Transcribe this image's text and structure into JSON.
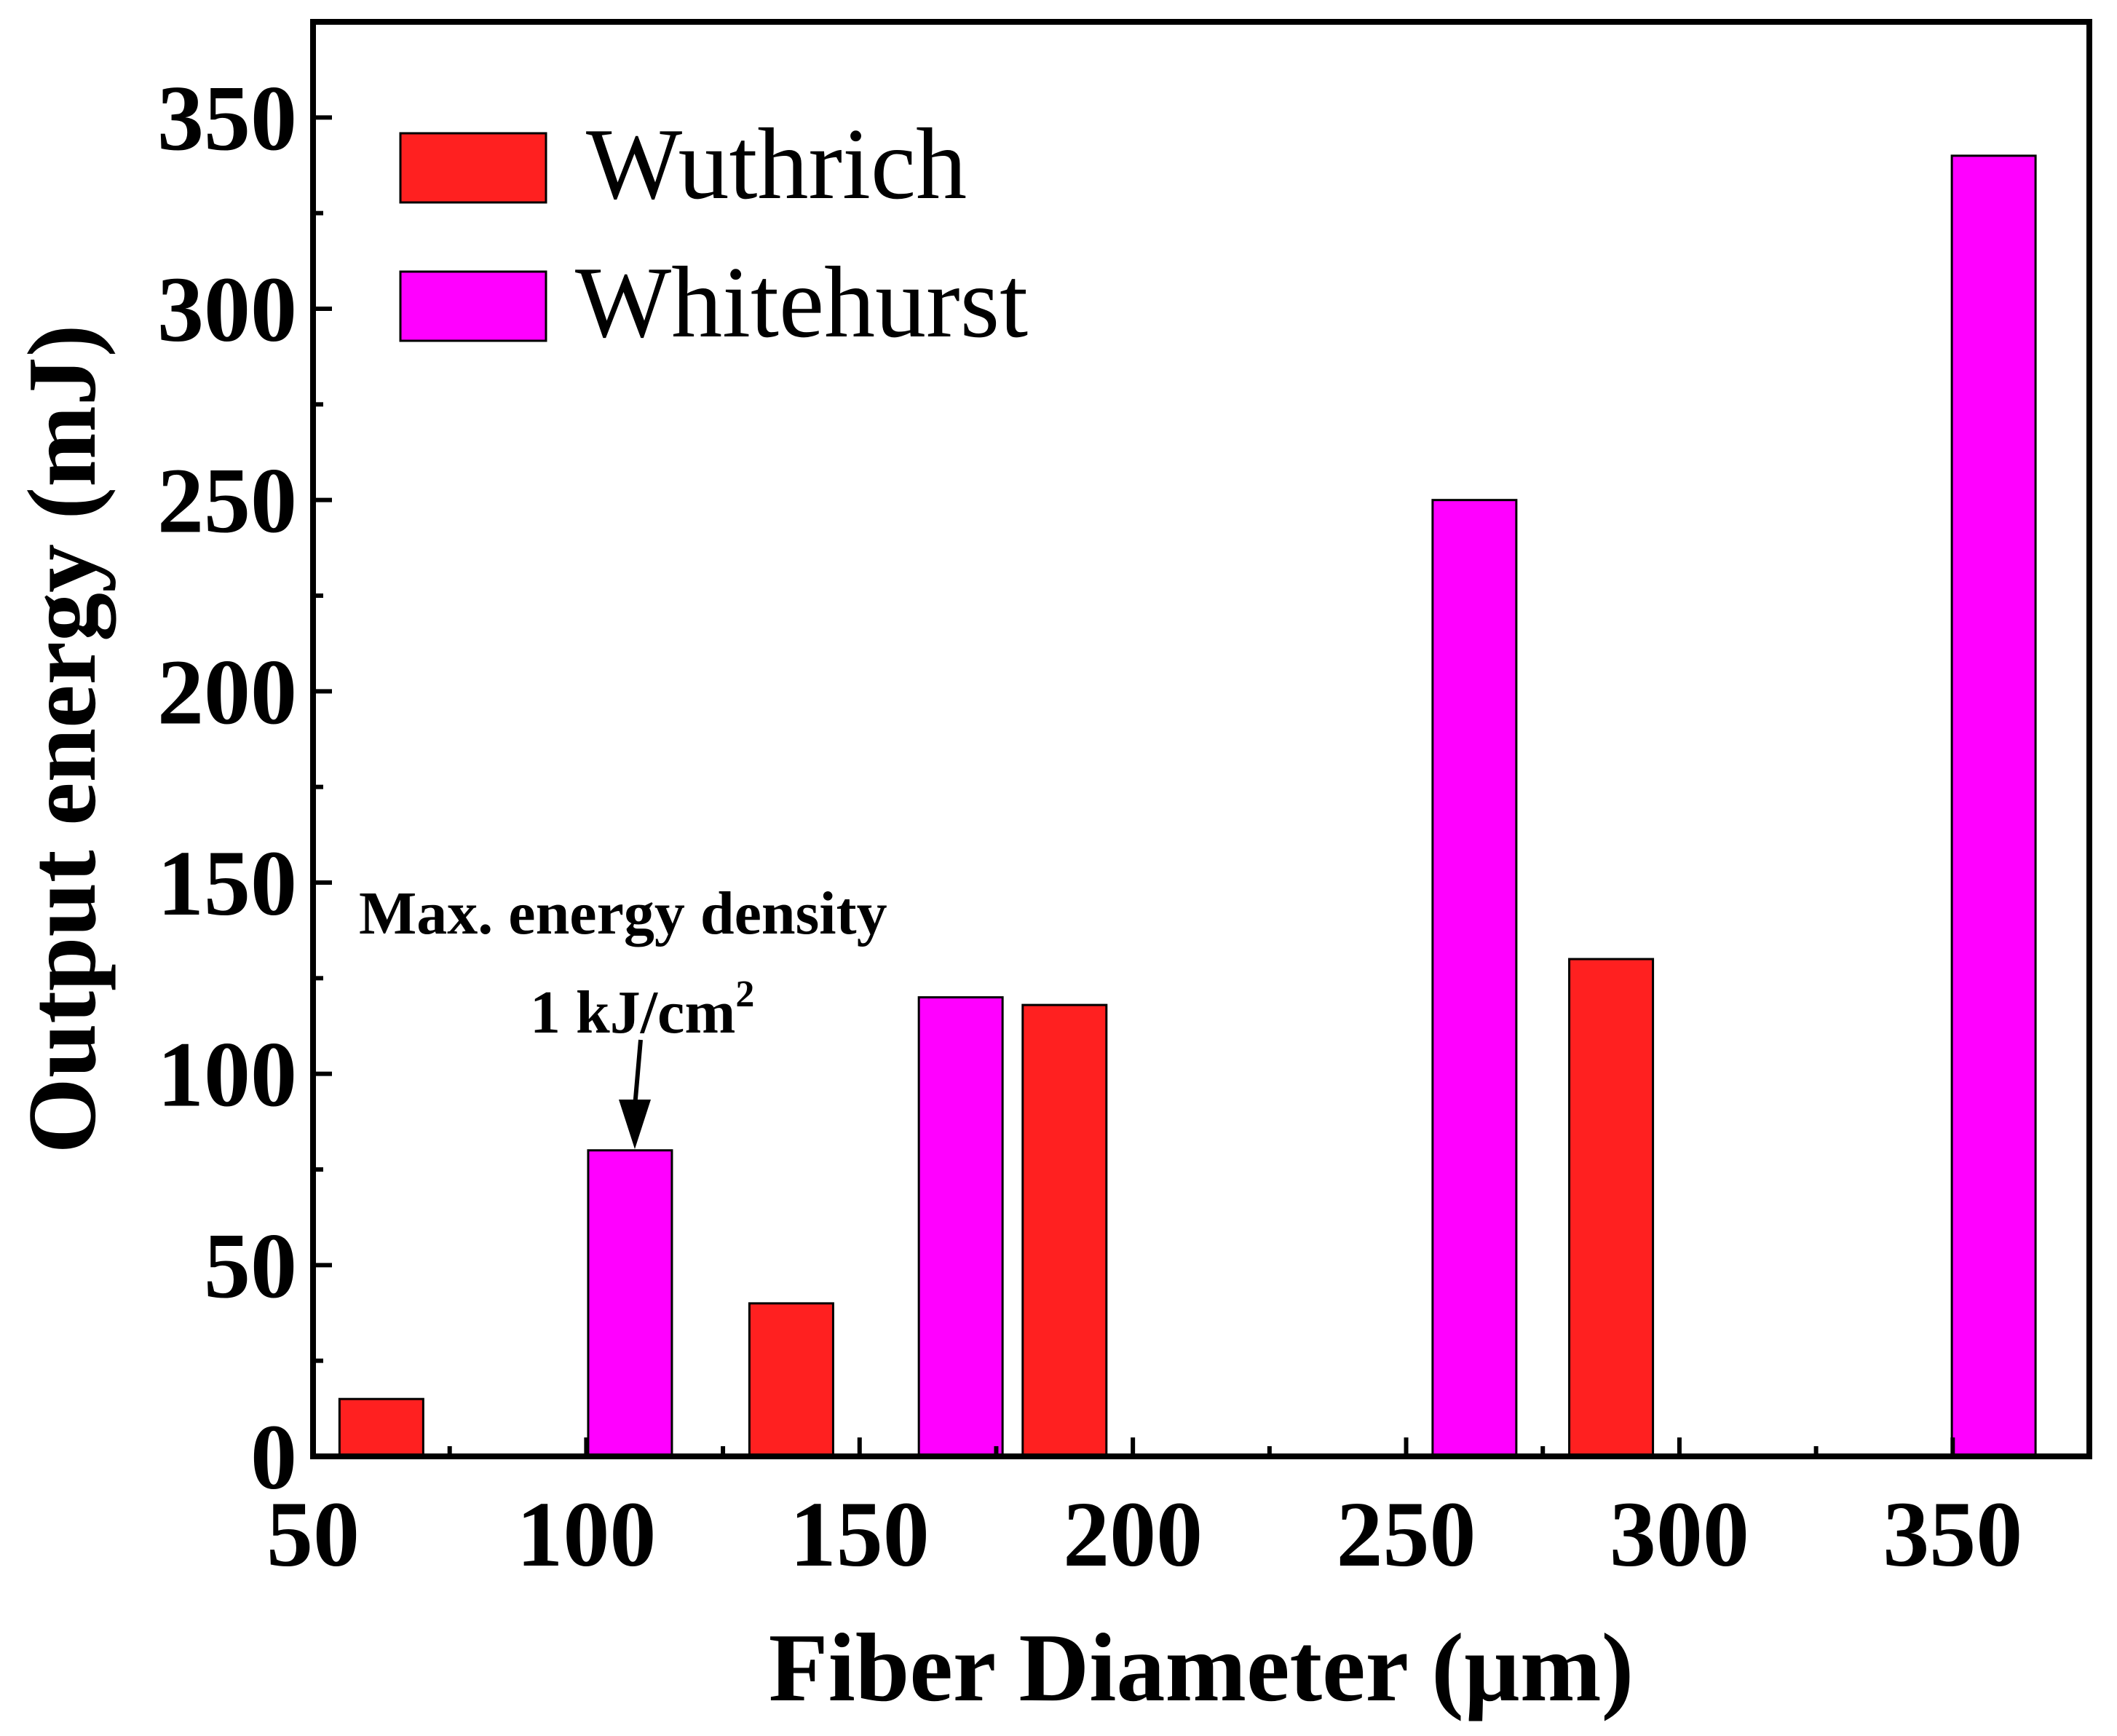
{
  "chart_data": {
    "type": "bar",
    "title": "",
    "xlabel": "Fiber Diameter (µm)",
    "ylabel": "Output energy (mJ)",
    "xlim": [
      50,
      375
    ],
    "ylim": [
      0,
      375
    ],
    "xticks": [
      50,
      100,
      150,
      200,
      250,
      300,
      350
    ],
    "yticks": [
      0,
      50,
      100,
      150,
      200,
      250,
      300,
      350
    ],
    "series": [
      {
        "name": "Wuthrich",
        "color": "#ff2020",
        "bars": [
          {
            "x": 62.5,
            "value": 15
          },
          {
            "x": 137.5,
            "value": 40
          },
          {
            "x": 187.5,
            "value": 118
          },
          {
            "x": 287.5,
            "value": 130
          }
        ]
      },
      {
        "name": "Whitehurst",
        "color": "#ff00ff",
        "bars": [
          {
            "x": 108,
            "value": 80
          },
          {
            "x": 168.5,
            "value": 120
          },
          {
            "x": 262.5,
            "value": 250
          },
          {
            "x": 357.5,
            "value": 340
          }
        ]
      }
    ],
    "legend_position": "top-left",
    "annotation": {
      "line1": "Max. energy density",
      "line2": "1 kJ/cm",
      "superscript": "2",
      "target": {
        "x": 108,
        "value": 80
      }
    }
  }
}
